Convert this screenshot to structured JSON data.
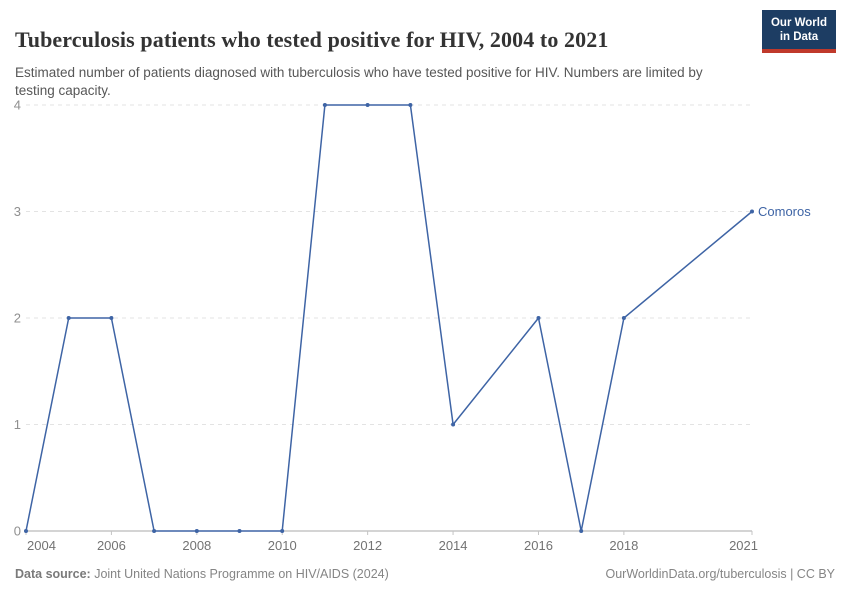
{
  "header": {
    "title": "Tuberculosis patients who tested positive for HIV, 2004 to 2021",
    "subtitle": "Estimated number of patients diagnosed with tuberculosis who have tested positive for HIV. Numbers are limited by testing capacity.",
    "logo": {
      "line1": "Our World",
      "line2": "in Data",
      "bg_color": "#1d3d63",
      "accent_color": "#c0392b"
    }
  },
  "chart_data": {
    "type": "line",
    "title": "Tuberculosis patients who tested positive for HIV, 2004 to 2021",
    "xlabel": "",
    "ylabel": "",
    "x": [
      2004,
      2005,
      2006,
      2007,
      2008,
      2009,
      2010,
      2011,
      2012,
      2013,
      2014,
      2016,
      2017,
      2018,
      2021
    ],
    "series": [
      {
        "name": "Comoros",
        "values": [
          0,
          2,
          2,
          0,
          0,
          0,
          0,
          4,
          4,
          4,
          1,
          2,
          0,
          2,
          3
        ]
      }
    ],
    "xlim": [
      2004,
      2021
    ],
    "ylim": [
      0,
      4
    ],
    "x_ticks": [
      2004,
      2006,
      2008,
      2010,
      2012,
      2014,
      2016,
      2018,
      2021
    ],
    "y_ticks": [
      0,
      1,
      2,
      3,
      4
    ],
    "grid": "horizontal-dashed",
    "legend_position": "end-of-line-label",
    "colors": {
      "line": "#3e64a5",
      "marker": "#3e64a5",
      "end_label": "#3e64a5",
      "grid": "#e3e3e3",
      "axis": "#a8a8a8",
      "tick_mark": "#c4c4c4"
    }
  },
  "footer": {
    "source_label": "Data source:",
    "source_text": " Joint United Nations Programme on HIV/AIDS (2024)",
    "link_text": "OurWorldinData.org/tuberculosis | CC BY"
  }
}
